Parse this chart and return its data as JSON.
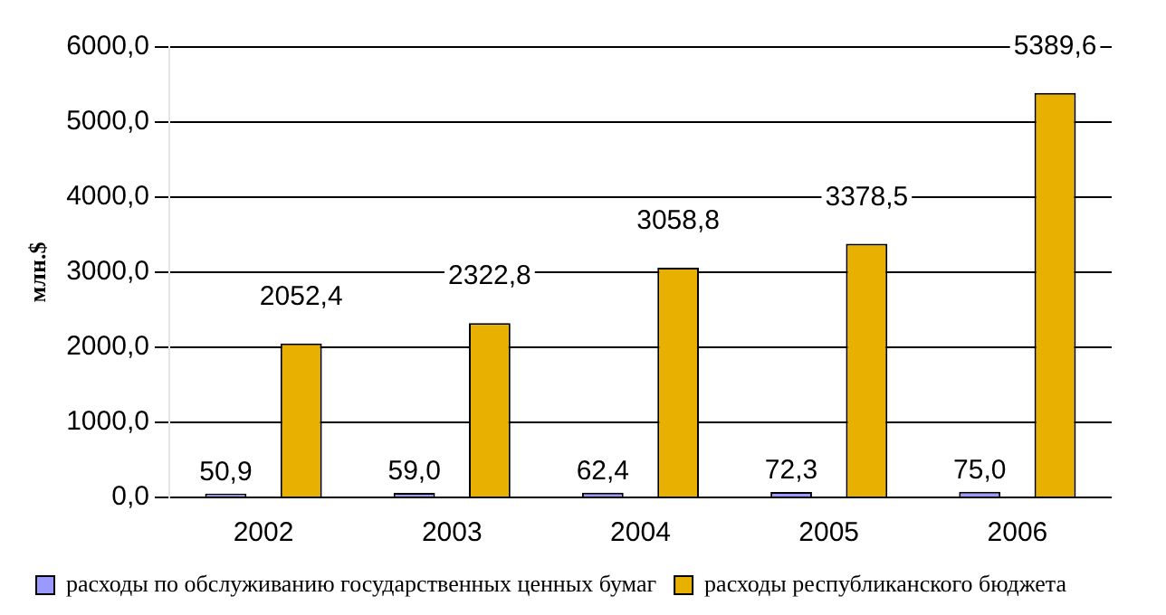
{
  "chart_data": {
    "type": "bar",
    "ylabel": "млн.$",
    "categories": [
      "2002",
      "2003",
      "2004",
      "2005",
      "2006"
    ],
    "series": [
      {
        "name": "расходы по обслуживанию государственных ценных бумаг",
        "color": "#9999ff",
        "values": [
          50.9,
          59.0,
          62.4,
          72.3,
          75.0
        ],
        "value_labels": [
          "50,9",
          "59,0",
          "62,4",
          "72,3",
          "75,0"
        ]
      },
      {
        "name": "расходы республиканского бюджета",
        "color": "#e8b000",
        "values": [
          2052.4,
          2322.8,
          3058.8,
          3378.5,
          5389.6
        ],
        "value_labels": [
          "2052,4",
          "2322,8",
          "3058,8",
          "3378,5",
          "5389,6"
        ]
      }
    ],
    "ylim": [
      0,
      6000
    ],
    "yticks": [
      {
        "value": 0,
        "label": "0,0"
      },
      {
        "value": 1000,
        "label": "1000,0"
      },
      {
        "value": 2000,
        "label": "2000,0"
      },
      {
        "value": 3000,
        "label": "3000,0"
      },
      {
        "value": 4000,
        "label": "4000,0"
      },
      {
        "value": 5000,
        "label": "5000,0"
      },
      {
        "value": 6000,
        "label": "6000,0"
      }
    ],
    "grid": "y",
    "legend": "bottom"
  }
}
